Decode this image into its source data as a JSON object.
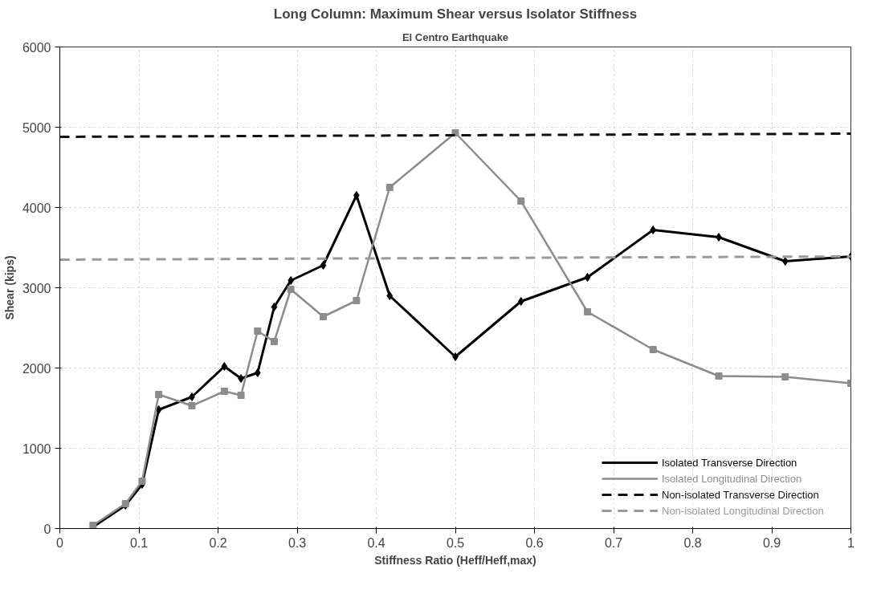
{
  "chart_data": {
    "type": "line",
    "title": "Long Column: Maximum Shear versus Isolator Stiffness",
    "subtitle": "El Centro Earthquake",
    "xlabel": "Stiffness Ratio (Heff/Heff,max)",
    "ylabel": "Shear (kips)",
    "xlim": [
      0,
      1
    ],
    "xticks": [
      0,
      0.1,
      0.2,
      0.3,
      0.4,
      0.5,
      0.6,
      0.7,
      0.8,
      0.9,
      1
    ],
    "ylim": [
      0,
      6000
    ],
    "yticks": [
      0,
      1000,
      2000,
      3000,
      4000,
      5000,
      6000
    ],
    "grid": true,
    "legend": "bottom right",
    "series": [
      {
        "name": "Isolated Transverse Direction",
        "color": "#000000",
        "marker": "diamond",
        "line_style": "solid",
        "x": [
          0.042,
          0.083,
          0.104,
          0.125,
          0.167,
          0.208,
          0.229,
          0.25,
          0.271,
          0.292,
          0.333,
          0.375,
          0.417,
          0.5,
          0.583,
          0.667,
          0.75,
          0.833,
          0.917,
          1.0
        ],
        "values": [
          20,
          290,
          550,
          1480,
          1640,
          2020,
          1870,
          1940,
          2760,
          3090,
          3280,
          4150,
          2900,
          2140,
          2830,
          3130,
          3720,
          3630,
          3330,
          3390
        ]
      },
      {
        "name": "Isolated Longitudinal Direction",
        "color": "#8c8c8c",
        "marker": "square",
        "line_style": "solid",
        "x": [
          0.042,
          0.083,
          0.104,
          0.125,
          0.167,
          0.208,
          0.229,
          0.25,
          0.271,
          0.292,
          0.333,
          0.375,
          0.417,
          0.5,
          0.583,
          0.667,
          0.75,
          0.833,
          0.917,
          1.0
        ],
        "values": [
          40,
          310,
          590,
          1670,
          1530,
          1710,
          1660,
          2460,
          2330,
          2980,
          2640,
          2840,
          4250,
          4930,
          4080,
          2700,
          2230,
          1900,
          1890,
          1810
        ]
      },
      {
        "name": "Non-isolated Transverse Direction",
        "color": "#111111",
        "marker": "none",
        "line_style": "dashed",
        "x": [
          0,
          1
        ],
        "values": [
          4880,
          4920
        ]
      },
      {
        "name": "Non-isolated Longitudinal Direction",
        "color": "#999999",
        "marker": "none",
        "line_style": "dashed",
        "x": [
          0,
          1
        ],
        "values": [
          3350,
          3390
        ]
      }
    ]
  }
}
